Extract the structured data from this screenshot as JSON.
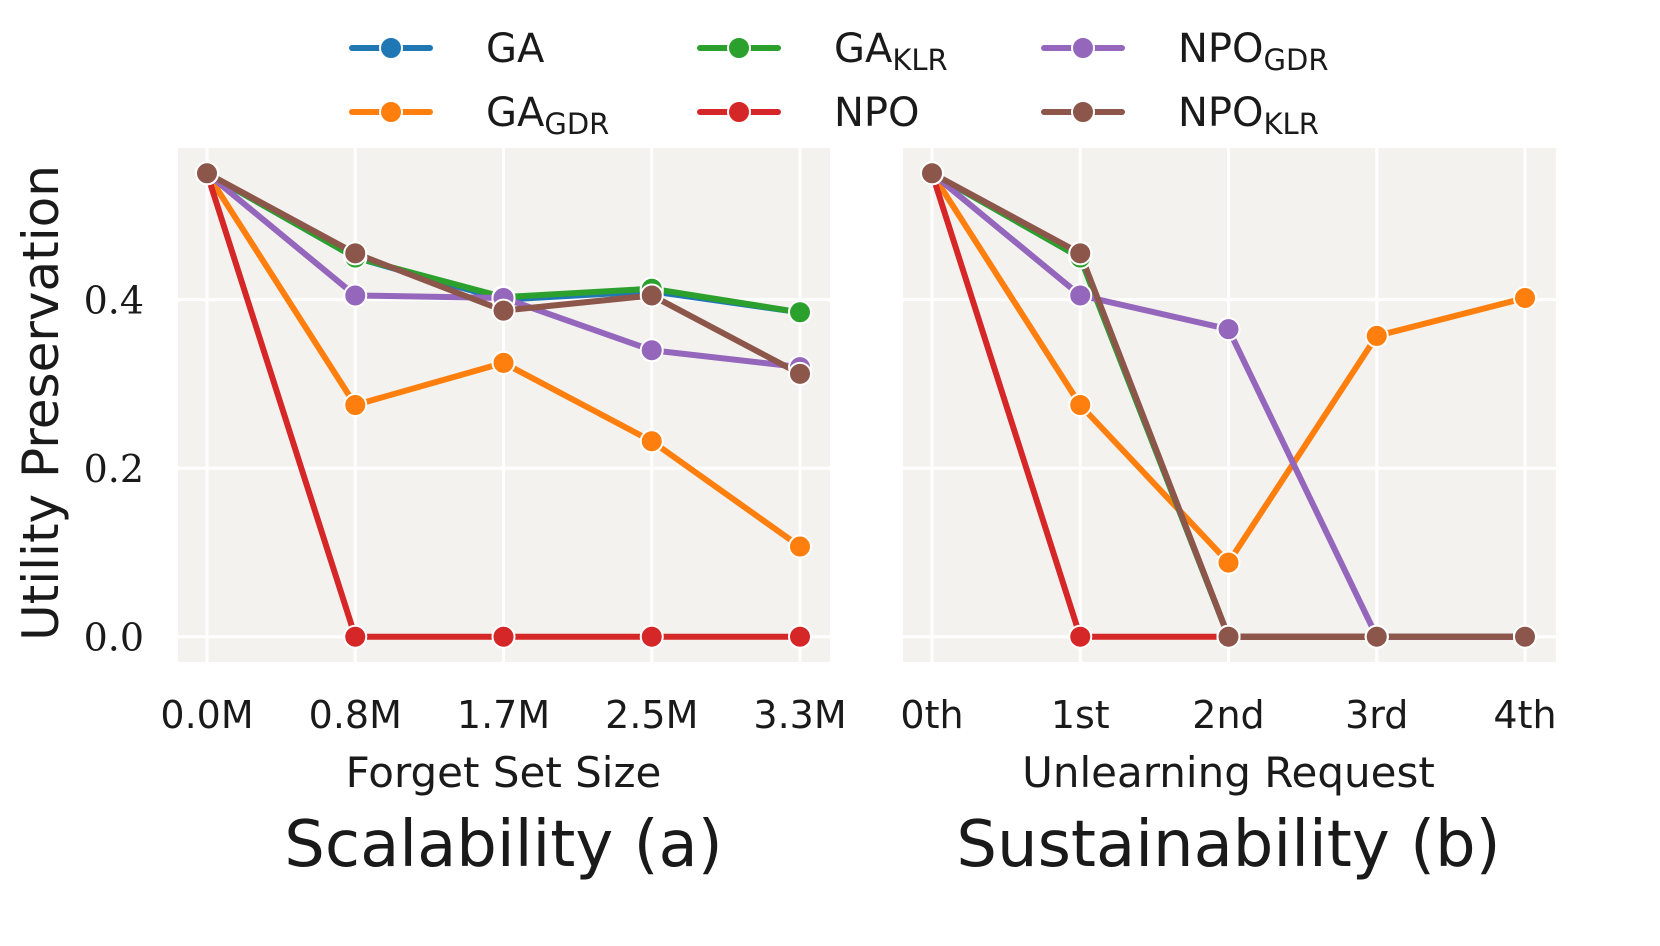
{
  "legend": {
    "items": [
      {
        "base": "GA",
        "sub": "",
        "color": "#1f77b4"
      },
      {
        "base": "GA",
        "sub": "KLR",
        "color": "#2ca02c"
      },
      {
        "base": "NPO",
        "sub": "GDR",
        "color": "#9467bd"
      },
      {
        "base": "GA",
        "sub": "GDR",
        "color": "#ff7f0e"
      },
      {
        "base": "NPO",
        "sub": "",
        "color": "#d62728"
      },
      {
        "base": "NPO",
        "sub": "KLR",
        "color": "#8c564b"
      }
    ]
  },
  "chart_data": [
    {
      "type": "line",
      "title": "Scalability (a)",
      "xlabel": "Forget Set Size",
      "ylabel": "Utility Preservation",
      "categories": [
        "0.0M",
        "0.8M",
        "1.7M",
        "2.5M",
        "3.3M"
      ],
      "yticks": [
        "0.0",
        "0.2",
        "0.4"
      ],
      "ylim": [
        -0.03,
        0.58
      ],
      "grid": true,
      "series": [
        {
          "name": "GA",
          "color": "#1f77b4",
          "values": [
            0.55,
            0.45,
            0.4,
            0.41,
            0.385
          ]
        },
        {
          "name": "GA_GDR",
          "color": "#ff7f0e",
          "values": [
            0.55,
            0.275,
            0.325,
            0.232,
            0.107
          ]
        },
        {
          "name": "GA_KLR",
          "color": "#2ca02c",
          "values": [
            0.55,
            0.45,
            0.403,
            0.413,
            0.385
          ]
        },
        {
          "name": "NPO",
          "color": "#d62728",
          "values": [
            0.55,
            0.0,
            0.0,
            0.0,
            0.0
          ]
        },
        {
          "name": "NPO_GDR",
          "color": "#9467bd",
          "values": [
            0.55,
            0.405,
            0.402,
            0.34,
            0.32
          ]
        },
        {
          "name": "NPO_KLR",
          "color": "#8c564b",
          "values": [
            0.55,
            0.455,
            0.387,
            0.405,
            0.312
          ]
        }
      ]
    },
    {
      "type": "line",
      "title": "Sustainability (b)",
      "xlabel": "Unlearning Request",
      "ylabel": "",
      "categories": [
        "0th",
        "1st",
        "2nd",
        "3rd",
        "4th"
      ],
      "yticks": [],
      "ylim": [
        -0.03,
        0.58
      ],
      "grid": true,
      "series": [
        {
          "name": "GA",
          "color": "#1f77b4",
          "values": [
            0.55,
            0.45,
            0.0,
            0.0,
            0.0
          ]
        },
        {
          "name": "GA_GDR",
          "color": "#ff7f0e",
          "values": [
            0.55,
            0.275,
            0.088,
            0.357,
            0.402
          ]
        },
        {
          "name": "GA_KLR",
          "color": "#2ca02c",
          "values": [
            0.55,
            0.45,
            0.0,
            0.0,
            0.0
          ]
        },
        {
          "name": "NPO",
          "color": "#d62728",
          "values": [
            0.55,
            0.0,
            0.0,
            0.0,
            0.0
          ]
        },
        {
          "name": "NPO_GDR",
          "color": "#9467bd",
          "values": [
            0.55,
            0.405,
            0.365,
            0.0,
            0.0
          ]
        },
        {
          "name": "NPO_KLR",
          "color": "#8c564b",
          "values": [
            0.55,
            0.455,
            0.0,
            0.0,
            0.0
          ]
        }
      ]
    }
  ]
}
